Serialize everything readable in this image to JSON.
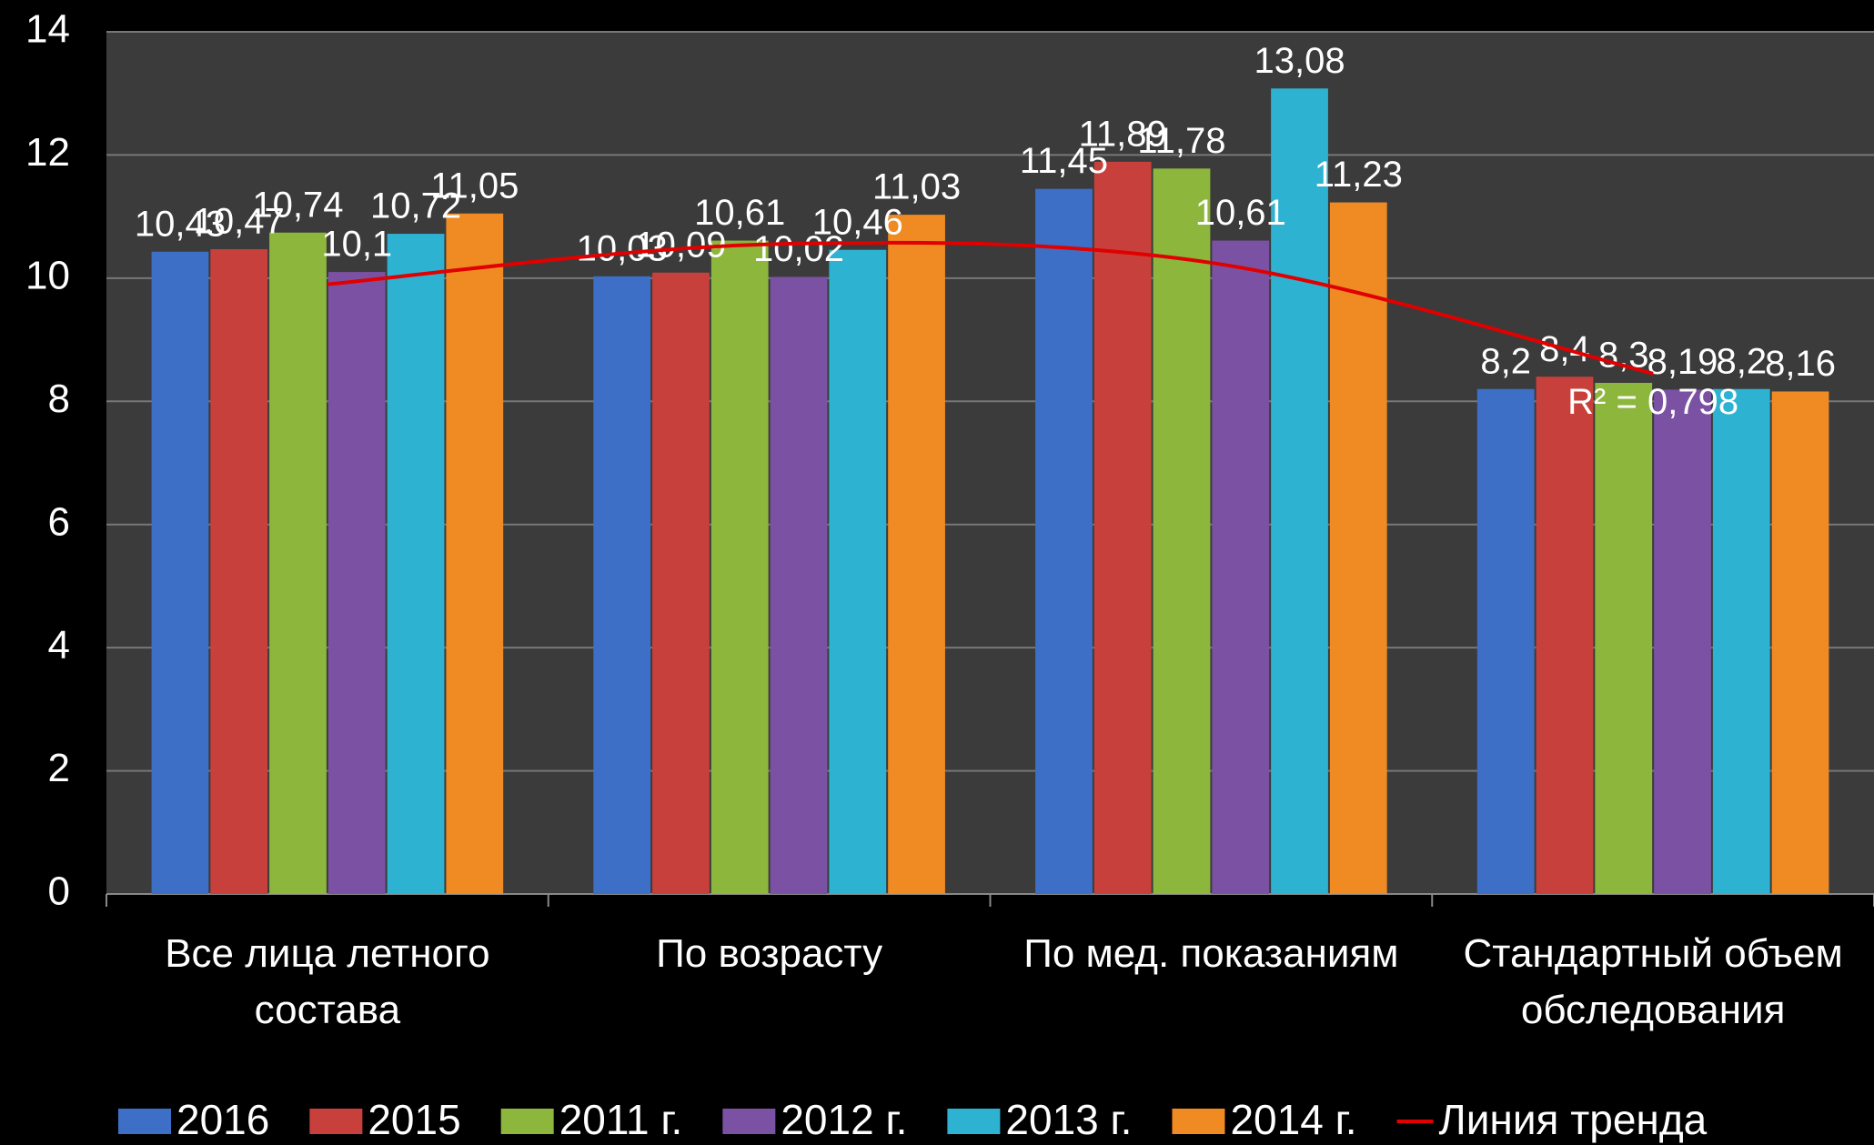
{
  "chart_data": {
    "type": "bar",
    "categories": [
      "Все лица летного состава",
      "По возрасту",
      "По мед. показаниям",
      "Стандартный объем обследования"
    ],
    "series": [
      {
        "name": "2016",
        "color": "#3d6fc6",
        "values": [
          10.43,
          10.03,
          11.45,
          8.2
        ],
        "value_labels": [
          "10,43",
          "10,03",
          "11,45",
          "8,2"
        ]
      },
      {
        "name": "2015",
        "color": "#c8403b",
        "values": [
          10.47,
          10.09,
          11.89,
          8.4
        ],
        "value_labels": [
          "10,47",
          "10,09",
          "11,89",
          "8,4"
        ]
      },
      {
        "name": "2011 г.",
        "color": "#8db63c",
        "values": [
          10.74,
          10.61,
          11.78,
          8.3
        ],
        "value_labels": [
          "10,74",
          "10,61",
          "11,78",
          "8,3"
        ]
      },
      {
        "name": "2012 г.",
        "color": "#7b52a3",
        "values": [
          10.1,
          10.02,
          10.61,
          8.19
        ],
        "value_labels": [
          "10,1",
          "10,02",
          "10,61",
          "8,19"
        ]
      },
      {
        "name": "2013 г.",
        "color": "#2eb2d2",
        "values": [
          10.72,
          10.46,
          13.08,
          8.2
        ],
        "value_labels": [
          "10,72",
          "10,46",
          "13,08",
          "8,2"
        ]
      },
      {
        "name": "2014 г.",
        "color": "#f08a22",
        "values": [
          11.05,
          11.03,
          11.23,
          8.16
        ],
        "value_labels": [
          "11,05",
          "11,03",
          "11,23",
          "8,16"
        ]
      },
      {
        "name": "Линия тренда",
        "type": "line",
        "color": "#e00000",
        "values": [
          9.9,
          10.55,
          10.25,
          8.45
        ]
      }
    ],
    "annotations": [
      "R² = 0,798"
    ],
    "ylim": [
      0,
      14
    ],
    "yticks": [
      0,
      2,
      4,
      6,
      8,
      10,
      12,
      14
    ],
    "grid": true
  }
}
